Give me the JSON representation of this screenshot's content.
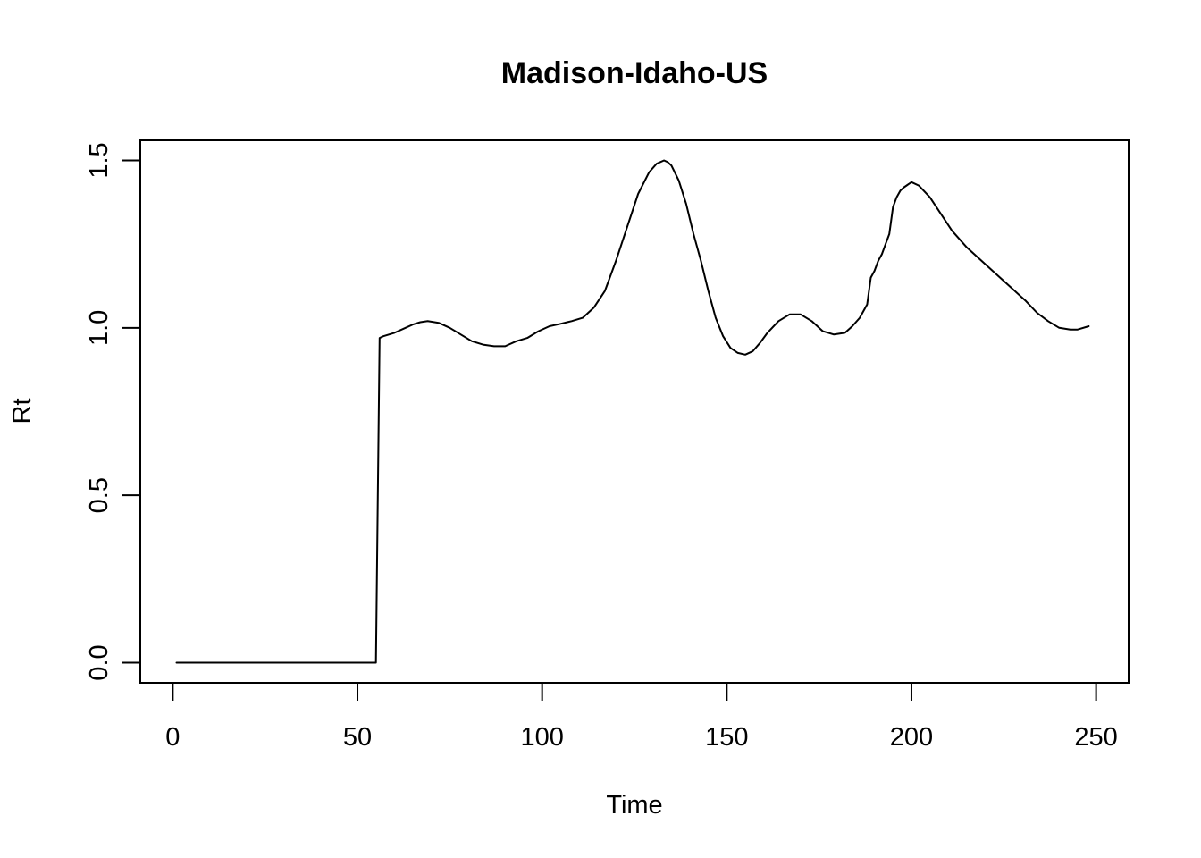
{
  "chart_data": {
    "type": "line",
    "title": "Madison-Idaho-US",
    "xlabel": "Time",
    "ylabel": "Rt",
    "xlim": [
      -8.8,
      258.8
    ],
    "ylim": [
      -0.06,
      1.56
    ],
    "xticks": [
      0,
      50,
      100,
      150,
      200,
      250
    ],
    "yticks": [
      0.0,
      0.5,
      1.0,
      1.5
    ],
    "xtick_labels": [
      "0",
      "50",
      "100",
      "150",
      "200",
      "250"
    ],
    "ytick_labels": [
      "0.0",
      "0.5",
      "1.0",
      "1.5"
    ],
    "grid": false,
    "series": [
      {
        "color": "#000000",
        "x": [
          1,
          55,
          56,
          57,
          60,
          63,
          65,
          67,
          69,
          72,
          75,
          78,
          81,
          84,
          87,
          90,
          93,
          96,
          99,
          102,
          105,
          108,
          111,
          114,
          117,
          120,
          123,
          126,
          129,
          131,
          133,
          134,
          135,
          137,
          139,
          141,
          143,
          145,
          147,
          149,
          151,
          153,
          155,
          157,
          159,
          161,
          164,
          167,
          170,
          173,
          176,
          179,
          182,
          184,
          186,
          188,
          189,
          190,
          191,
          192,
          193,
          194,
          195,
          196,
          197,
          198,
          200,
          202,
          205,
          208,
          211,
          215,
          219,
          223,
          227,
          231,
          234,
          237,
          240,
          243,
          245,
          248
        ],
        "y": [
          0.0,
          0.0,
          0.97,
          0.975,
          0.985,
          1.0,
          1.01,
          1.017,
          1.02,
          1.015,
          1.0,
          0.98,
          0.96,
          0.95,
          0.945,
          0.945,
          0.96,
          0.97,
          0.99,
          1.005,
          1.012,
          1.02,
          1.03,
          1.06,
          1.11,
          1.2,
          1.3,
          1.4,
          1.465,
          1.49,
          1.5,
          1.495,
          1.485,
          1.44,
          1.37,
          1.28,
          1.2,
          1.11,
          1.03,
          0.975,
          0.94,
          0.925,
          0.92,
          0.93,
          0.955,
          0.985,
          1.02,
          1.04,
          1.04,
          1.02,
          0.99,
          0.98,
          0.985,
          1.005,
          1.03,
          1.07,
          1.15,
          1.17,
          1.2,
          1.22,
          1.25,
          1.28,
          1.36,
          1.39,
          1.41,
          1.42,
          1.435,
          1.425,
          1.39,
          1.34,
          1.29,
          1.24,
          1.2,
          1.16,
          1.12,
          1.08,
          1.045,
          1.02,
          1.0,
          0.995,
          0.995,
          1.005
        ]
      }
    ]
  }
}
